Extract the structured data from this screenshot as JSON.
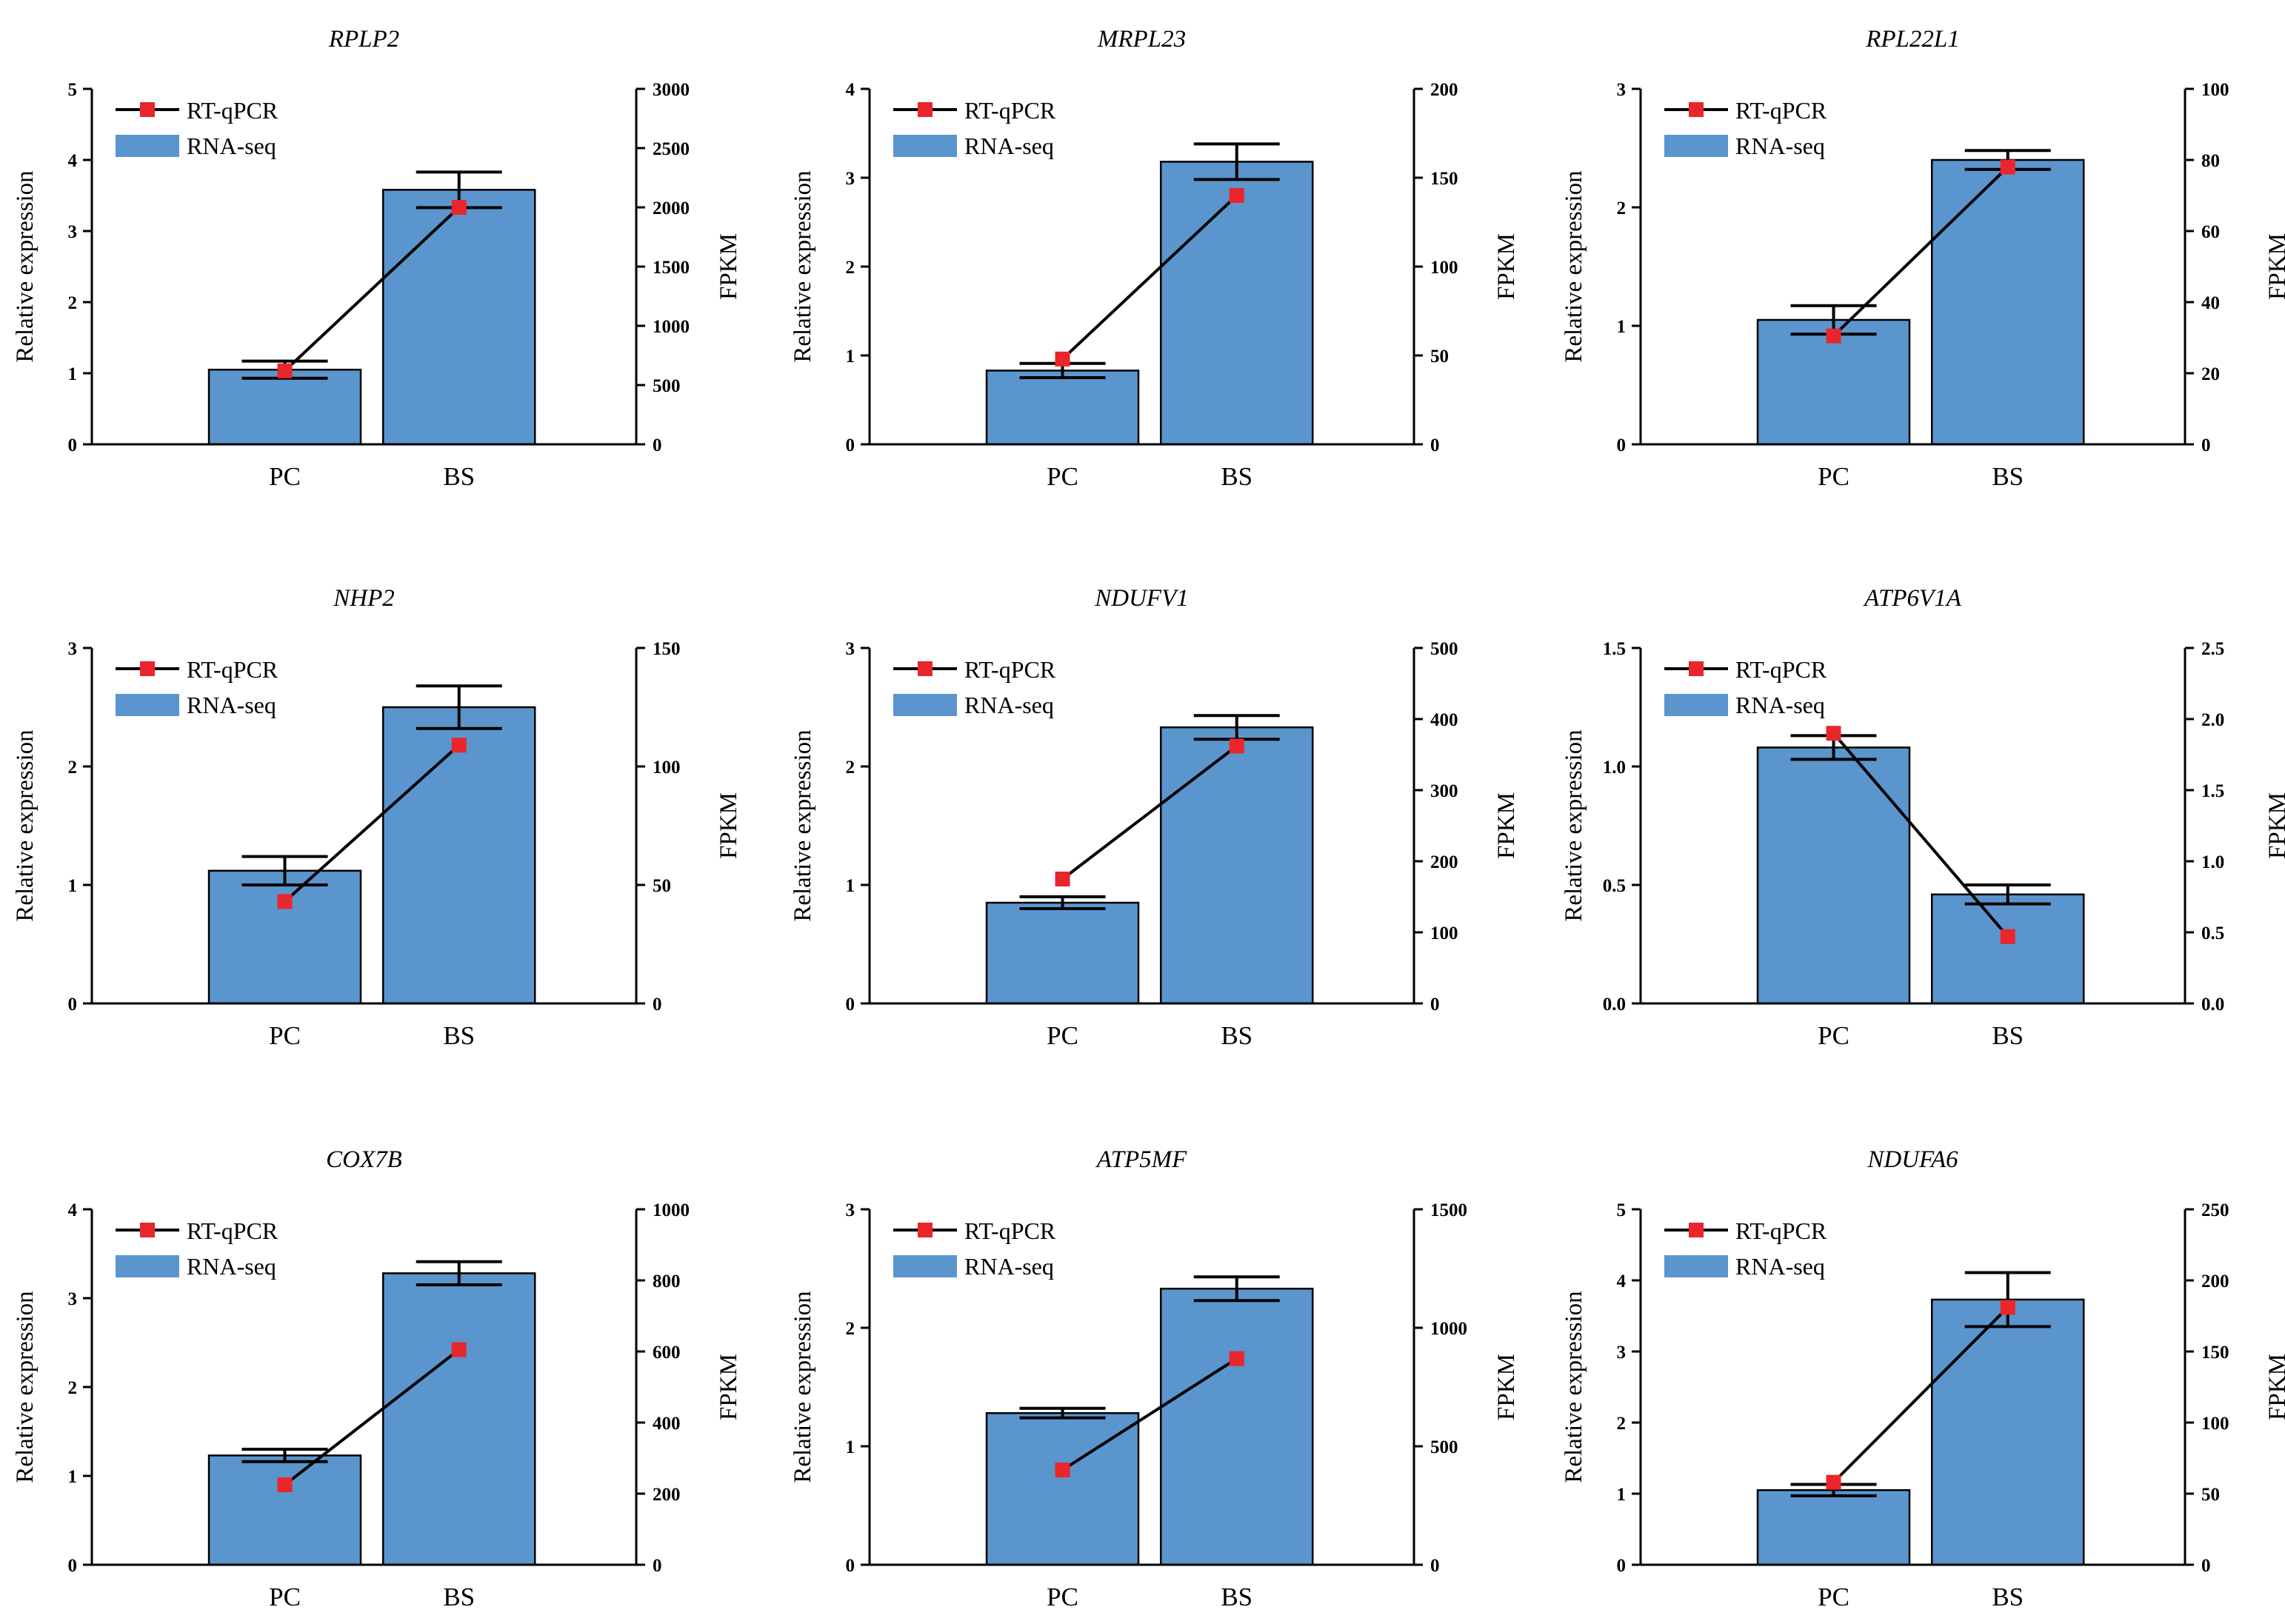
{
  "figure": {
    "colors": {
      "bar": "#5b95cd",
      "bar_edge": "#000000",
      "marker": "#e8262b",
      "line": "#000000"
    },
    "legend_labels": {
      "line": "RT-qPCR",
      "bar": "RNA-seq"
    }
  },
  "chart_data": [
    {
      "type": "bar",
      "title": "RPLP2",
      "categories": [
        "PC",
        "BS"
      ],
      "ylabel": "Relative expression",
      "y2label": "FPKM",
      "ylim": [
        0,
        5
      ],
      "y2lim": [
        0,
        3000
      ],
      "yticks": [
        "0",
        "1",
        "2",
        "3",
        "4",
        "5"
      ],
      "y2ticks": [
        "0",
        "500",
        "1000",
        "1500",
        "2000",
        "2500",
        "3000"
      ],
      "series": [
        {
          "name": "RNA-seq",
          "type": "bar",
          "axis": "left",
          "values": [
            1.05,
            3.58
          ],
          "errors": [
            0.12,
            0.25
          ]
        },
        {
          "name": "RT-qPCR",
          "type": "line",
          "axis": "right",
          "values": [
            620,
            2000
          ]
        }
      ],
      "legend": "top-left"
    },
    {
      "type": "bar",
      "title": "MRPL23",
      "categories": [
        "PC",
        "BS"
      ],
      "ylabel": "Relative expression",
      "y2label": "FPKM",
      "ylim": [
        0,
        4
      ],
      "y2lim": [
        0,
        200
      ],
      "yticks": [
        "0",
        "1",
        "2",
        "3",
        "4"
      ],
      "y2ticks": [
        "0",
        "50",
        "100",
        "150",
        "200"
      ],
      "series": [
        {
          "name": "RNA-seq",
          "type": "bar",
          "axis": "left",
          "values": [
            0.83,
            3.18
          ],
          "errors": [
            0.08,
            0.2
          ]
        },
        {
          "name": "RT-qPCR",
          "type": "line",
          "axis": "right",
          "values": [
            48,
            140
          ]
        }
      ],
      "legend": "top-left"
    },
    {
      "type": "bar",
      "title": "RPL22L1",
      "categories": [
        "PC",
        "BS"
      ],
      "ylabel": "Relative expression",
      "y2label": "FPKM",
      "ylim": [
        0,
        3
      ],
      "y2lim": [
        0,
        100
      ],
      "yticks": [
        "0",
        "1",
        "2",
        "3"
      ],
      "y2ticks": [
        "0",
        "20",
        "40",
        "60",
        "80",
        "100"
      ],
      "series": [
        {
          "name": "RNA-seq",
          "type": "bar",
          "axis": "left",
          "values": [
            1.05,
            2.4
          ],
          "errors": [
            0.12,
            0.08
          ]
        },
        {
          "name": "RT-qPCR",
          "type": "line",
          "axis": "right",
          "values": [
            30.5,
            78
          ]
        }
      ],
      "legend": "top-left"
    },
    {
      "type": "bar",
      "title": "NHP2",
      "categories": [
        "PC",
        "BS"
      ],
      "ylabel": "Relative expression",
      "y2label": "FPKM",
      "ylim": [
        0,
        3
      ],
      "y2lim": [
        0,
        150
      ],
      "yticks": [
        "0",
        "1",
        "2",
        "3"
      ],
      "y2ticks": [
        "0",
        "50",
        "100",
        "150"
      ],
      "series": [
        {
          "name": "RNA-seq",
          "type": "bar",
          "axis": "left",
          "values": [
            1.12,
            2.5
          ],
          "errors": [
            0.12,
            0.18
          ]
        },
        {
          "name": "RT-qPCR",
          "type": "line",
          "axis": "right",
          "values": [
            43,
            109
          ]
        }
      ],
      "legend": "top-left"
    },
    {
      "type": "bar",
      "title": "NDUFV1",
      "categories": [
        "PC",
        "BS"
      ],
      "ylabel": "Relative expression",
      "y2label": "FPKM",
      "ylim": [
        0,
        3
      ],
      "y2lim": [
        0,
        500
      ],
      "yticks": [
        "0",
        "1",
        "2",
        "3"
      ],
      "y2ticks": [
        "0",
        "100",
        "200",
        "300",
        "400",
        "500"
      ],
      "series": [
        {
          "name": "RNA-seq",
          "type": "bar",
          "axis": "left",
          "values": [
            0.85,
            2.33
          ],
          "errors": [
            0.05,
            0.1
          ]
        },
        {
          "name": "RT-qPCR",
          "type": "line",
          "axis": "right",
          "values": [
            175,
            362
          ]
        }
      ],
      "legend": "top-left"
    },
    {
      "type": "bar",
      "title": "ATP6V1A",
      "categories": [
        "PC",
        "BS"
      ],
      "ylabel": "Relative expression",
      "y2label": "FPKM",
      "ylim": [
        0,
        1.5
      ],
      "y2lim": [
        0,
        2.5
      ],
      "yticks": [
        "0.0",
        "0.5",
        "1.0",
        "1.5"
      ],
      "y2ticks": [
        "0.0",
        "0.5",
        "1.0",
        "1.5",
        "2.0",
        "2.5"
      ],
      "series": [
        {
          "name": "RNA-seq",
          "type": "bar",
          "axis": "left",
          "values": [
            1.08,
            0.46
          ],
          "errors": [
            0.05,
            0.04
          ]
        },
        {
          "name": "RT-qPCR",
          "type": "line",
          "axis": "right",
          "values": [
            1.9,
            0.47
          ]
        }
      ],
      "legend": "top-left"
    },
    {
      "type": "bar",
      "title": "COX7B",
      "categories": [
        "PC",
        "BS"
      ],
      "ylabel": "Relative expression",
      "y2label": "FPKM",
      "ylim": [
        0,
        4
      ],
      "y2lim": [
        0,
        1000
      ],
      "yticks": [
        "0",
        "1",
        "2",
        "3",
        "4"
      ],
      "y2ticks": [
        "0",
        "200",
        "400",
        "600",
        "800",
        "1000"
      ],
      "series": [
        {
          "name": "RNA-seq",
          "type": "bar",
          "axis": "left",
          "values": [
            1.23,
            3.28
          ],
          "errors": [
            0.07,
            0.13
          ]
        },
        {
          "name": "RT-qPCR",
          "type": "line",
          "axis": "right",
          "values": [
            225,
            605
          ]
        }
      ],
      "legend": "top-left"
    },
    {
      "type": "bar",
      "title": "ATP5MF",
      "categories": [
        "PC",
        "BS"
      ],
      "ylabel": "Relative expression",
      "y2label": "FPKM",
      "ylim": [
        0,
        3
      ],
      "y2lim": [
        0,
        1500
      ],
      "yticks": [
        "0",
        "1",
        "2",
        "3"
      ],
      "y2ticks": [
        "0",
        "500",
        "1000",
        "1500"
      ],
      "series": [
        {
          "name": "RNA-seq",
          "type": "bar",
          "axis": "left",
          "values": [
            1.28,
            2.33
          ],
          "errors": [
            0.04,
            0.1
          ]
        },
        {
          "name": "RT-qPCR",
          "type": "line",
          "axis": "right",
          "values": [
            400,
            870
          ]
        }
      ],
      "legend": "top-left"
    },
    {
      "type": "bar",
      "title": "NDUFA6",
      "categories": [
        "PC",
        "BS"
      ],
      "ylabel": "Relative expression",
      "y2label": "FPKM",
      "ylim": [
        0,
        5
      ],
      "y2lim": [
        0,
        250
      ],
      "yticks": [
        "0",
        "1",
        "2",
        "3",
        "4",
        "5"
      ],
      "y2ticks": [
        "0",
        "50",
        "100",
        "150",
        "200",
        "250"
      ],
      "series": [
        {
          "name": "RNA-seq",
          "type": "bar",
          "axis": "left",
          "values": [
            1.05,
            3.73
          ],
          "errors": [
            0.08,
            0.38
          ]
        },
        {
          "name": "RT-qPCR",
          "type": "line",
          "axis": "right",
          "values": [
            58,
            181
          ]
        }
      ],
      "legend": "top-left"
    }
  ]
}
